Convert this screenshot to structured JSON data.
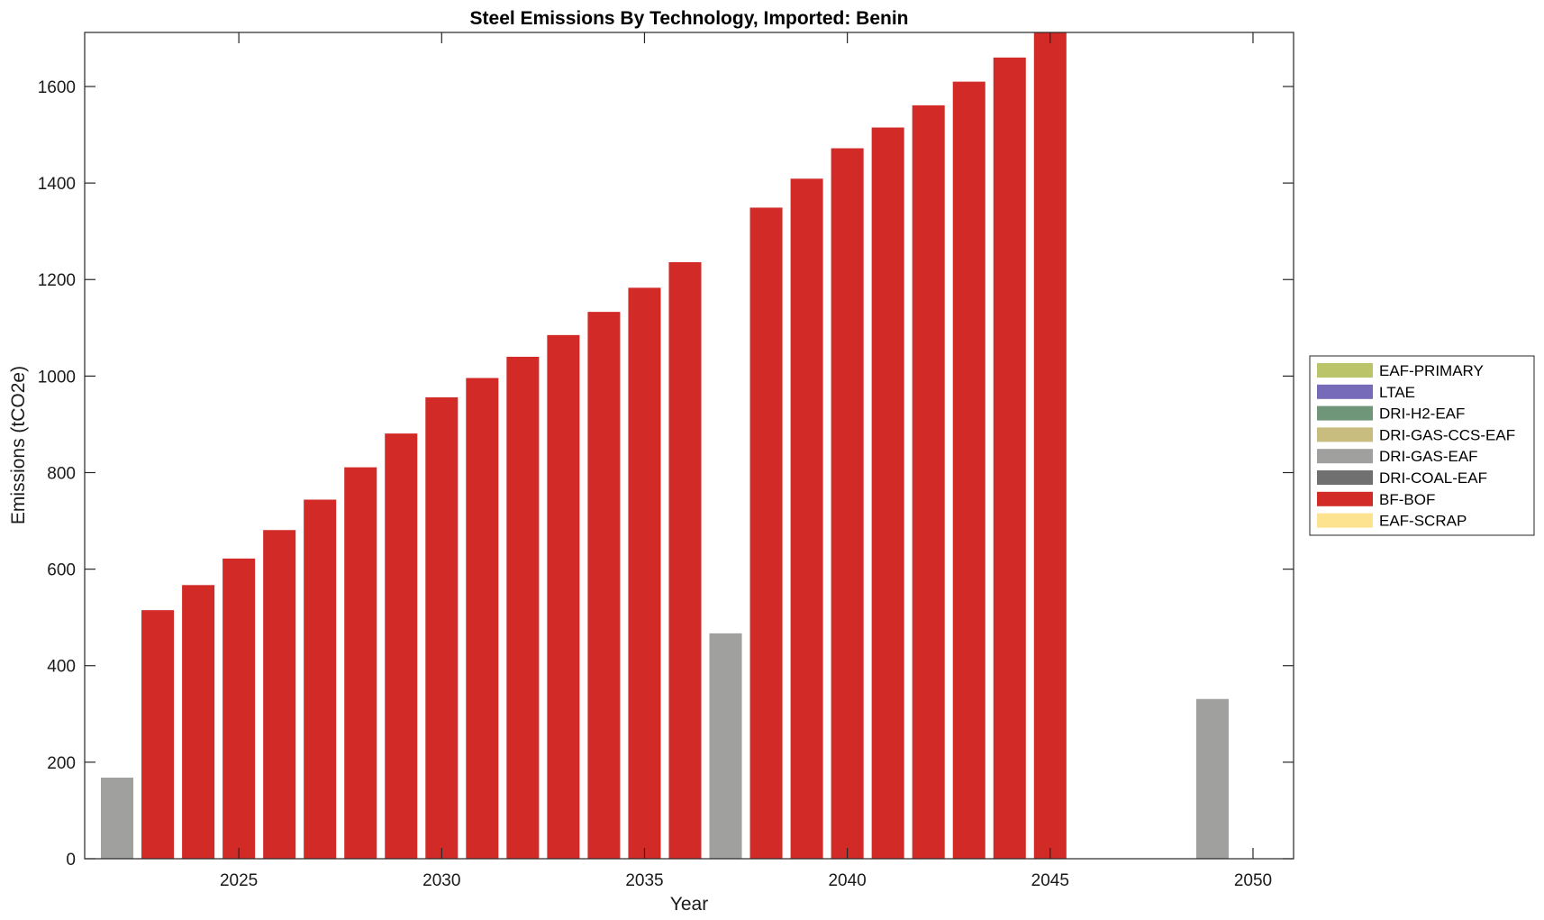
{
  "chart_data": {
    "type": "bar",
    "stacked": true,
    "title": "Steel Emissions By Technology, Imported: Benin",
    "xlabel": "Year",
    "ylabel": "Emissions (tCO2e)",
    "xlim": [
      2021.2,
      2051.0
    ],
    "ylim": [
      0,
      1712
    ],
    "xticks": [
      2025,
      2030,
      2035,
      2040,
      2045,
      2050
    ],
    "yticks": [
      0,
      200,
      400,
      600,
      800,
      1000,
      1200,
      1400,
      1600
    ],
    "grid": false,
    "legend_position": "right",
    "x": [
      2022,
      2023,
      2024,
      2025,
      2026,
      2027,
      2028,
      2029,
      2030,
      2031,
      2032,
      2033,
      2034,
      2035,
      2036,
      2037,
      2038,
      2039,
      2040,
      2041,
      2042,
      2043,
      2044,
      2045,
      2046,
      2047,
      2048,
      2049,
      2050
    ],
    "series": [
      {
        "name": "EAF-PRIMARY",
        "color": "#bcc46a",
        "values": [
          0,
          0,
          0,
          0,
          0,
          0,
          0,
          0,
          0,
          0,
          0,
          0,
          0,
          0,
          0,
          0,
          0,
          0,
          0,
          0,
          0,
          0,
          0,
          0,
          0,
          0,
          0,
          0,
          0
        ]
      },
      {
        "name": "LTAE",
        "color": "#756bb9",
        "values": [
          0,
          0,
          0,
          0,
          0,
          0,
          0,
          0,
          0,
          0,
          0,
          0,
          0,
          0,
          0,
          0,
          0,
          0,
          0,
          0,
          0,
          0,
          0,
          0,
          0,
          0,
          0,
          0,
          0
        ]
      },
      {
        "name": "DRI-H2-EAF",
        "color": "#6f9678",
        "values": [
          0,
          0,
          0,
          0,
          0,
          0,
          0,
          0,
          0,
          0,
          0,
          0,
          0,
          0,
          0,
          0,
          0,
          0,
          0,
          0,
          0,
          0,
          0,
          0,
          0,
          0,
          0,
          0,
          0
        ]
      },
      {
        "name": "DRI-GAS-CCS-EAF",
        "color": "#c8bd7e",
        "values": [
          0,
          0,
          0,
          0,
          0,
          0,
          0,
          0,
          0,
          0,
          0,
          0,
          0,
          0,
          0,
          0,
          0,
          0,
          0,
          0,
          0,
          0,
          0,
          0,
          0,
          0,
          0,
          0,
          0
        ]
      },
      {
        "name": "DRI-GAS-EAF",
        "color": "#a0a09f",
        "values": [
          168,
          0,
          0,
          0,
          0,
          0,
          0,
          0,
          0,
          0,
          0,
          0,
          0,
          0,
          0,
          467,
          0,
          0,
          0,
          0,
          0,
          0,
          0,
          0,
          0,
          0,
          0,
          331,
          0
        ]
      },
      {
        "name": "DRI-COAL-EAF",
        "color": "#707070",
        "values": [
          0,
          0,
          0,
          0,
          0,
          0,
          0,
          0,
          0,
          0,
          0,
          0,
          0,
          0,
          0,
          0,
          0,
          0,
          0,
          0,
          0,
          0,
          0,
          0,
          0,
          0,
          0,
          0,
          0
        ]
      },
      {
        "name": "BF-BOF",
        "color": "#d22b27",
        "values": [
          0,
          515,
          567,
          622,
          681,
          744,
          811,
          881,
          956,
          996,
          1040,
          1085,
          1133,
          1183,
          1236,
          0,
          1349,
          1409,
          1472,
          1515,
          1561,
          1610,
          1660,
          1712,
          0,
          0,
          0,
          0,
          0
        ]
      },
      {
        "name": "EAF-SCRAP",
        "color": "#fde28f",
        "values": [
          0,
          0,
          0,
          0,
          0,
          0,
          0,
          0,
          0,
          0,
          0,
          0,
          0,
          0,
          0,
          0,
          0,
          0,
          0,
          0,
          0,
          0,
          0,
          0,
          0,
          0,
          0,
          0,
          0
        ]
      }
    ]
  }
}
